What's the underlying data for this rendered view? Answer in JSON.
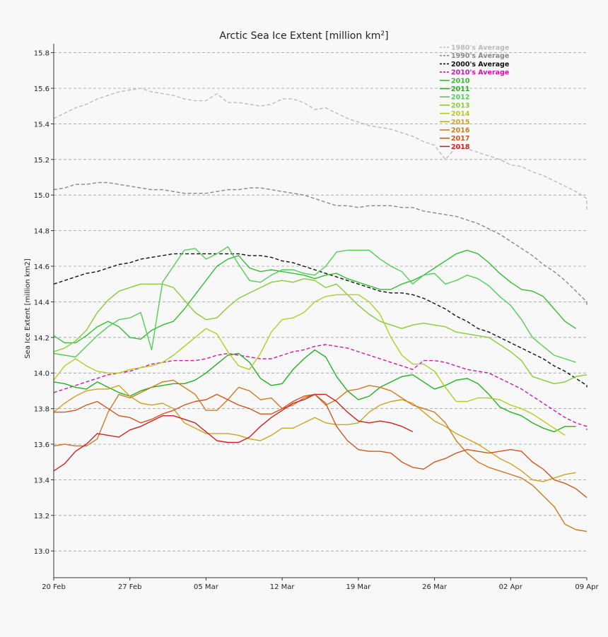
{
  "chart_data": {
    "type": "line",
    "title": "Arctic Sea Ice Extent [million km",
    "title_sup": "2",
    "title_end": "]",
    "ylabel": "Sea Ice Extent [million km2]",
    "xlabel": "",
    "ylim": [
      12.85,
      15.85
    ],
    "xlim": [
      0,
      49
    ],
    "grid": "horizontal-dashed",
    "legend_placement": "top-right",
    "y_ticks": [
      "13.0",
      "13.2",
      "13.4",
      "13.6",
      "13.8",
      "14.0",
      "14.2",
      "14.4",
      "14.6",
      "14.8",
      "15.0",
      "15.2",
      "15.4",
      "15.6",
      "15.8"
    ],
    "x_ticks": [
      {
        "label": "20 Feb",
        "day": 0
      },
      {
        "label": "27 Feb",
        "day": 7
      },
      {
        "label": "05 Mar",
        "day": 14
      },
      {
        "label": "12 Mar",
        "day": 21
      },
      {
        "label": "19 Mar",
        "day": 28
      },
      {
        "label": "26 Mar",
        "day": 35
      },
      {
        "label": "02 Apr",
        "day": 42
      },
      {
        "label": "09 Apr",
        "day": 49
      }
    ],
    "series": [
      {
        "name": "1980's Average",
        "color": "#bbbbbb",
        "dashed": true,
        "x0": 0,
        "values": [
          15.43,
          15.46,
          15.49,
          15.51,
          15.54,
          15.56,
          15.58,
          15.59,
          15.6,
          15.58,
          15.57,
          15.56,
          15.54,
          15.53,
          15.53,
          15.57,
          15.52,
          15.52,
          15.51,
          15.5,
          15.51,
          15.54,
          15.54,
          15.52,
          15.48,
          15.49,
          15.46,
          15.43,
          15.41,
          15.39,
          15.38,
          15.37,
          15.35,
          15.33,
          15.3,
          15.28,
          15.2,
          15.27,
          15.26,
          15.24,
          15.22,
          15.2,
          15.17,
          15.16,
          15.13,
          15.11,
          15.08,
          15.05,
          15.02,
          14.98,
          14.92,
          14.91
        ]
      },
      {
        "name": "1990's Average",
        "color": "#888888",
        "dashed": true,
        "x0": 0,
        "values": [
          15.03,
          15.04,
          15.06,
          15.06,
          15.07,
          15.07,
          15.06,
          15.05,
          15.04,
          15.03,
          15.03,
          15.02,
          15.01,
          15.01,
          15.01,
          15.02,
          15.03,
          15.03,
          15.04,
          15.04,
          15.03,
          15.02,
          15.01,
          15.0,
          14.98,
          14.96,
          14.94,
          14.94,
          14.93,
          14.94,
          14.94,
          14.94,
          14.93,
          14.93,
          14.91,
          14.9,
          14.89,
          14.88,
          14.86,
          14.84,
          14.81,
          14.78,
          14.74,
          14.7,
          14.66,
          14.61,
          14.57,
          14.52,
          14.46,
          14.4,
          14.38
        ]
      },
      {
        "name": "2000's Average",
        "color": "#111111",
        "dashed": true,
        "x0": 0,
        "values": [
          14.5,
          14.52,
          14.54,
          14.56,
          14.57,
          14.59,
          14.61,
          14.62,
          14.64,
          14.65,
          14.66,
          14.67,
          14.67,
          14.67,
          14.67,
          14.67,
          14.67,
          14.67,
          14.66,
          14.66,
          14.65,
          14.63,
          14.62,
          14.6,
          14.58,
          14.56,
          14.54,
          14.52,
          14.5,
          14.48,
          14.46,
          14.45,
          14.45,
          14.44,
          14.42,
          14.39,
          14.36,
          14.32,
          14.29,
          14.25,
          14.23,
          14.2,
          14.17,
          14.14,
          14.11,
          14.08,
          14.04,
          14.01,
          13.97,
          13.93,
          13.92
        ]
      },
      {
        "name": "2010's Average",
        "color": "#d015b0",
        "dashed": true,
        "x0": 0,
        "values": [
          13.89,
          13.91,
          13.93,
          13.95,
          13.97,
          13.99,
          14.0,
          14.01,
          14.03,
          14.05,
          14.06,
          14.07,
          14.07,
          14.07,
          14.08,
          14.1,
          14.11,
          14.1,
          14.09,
          14.08,
          14.08,
          14.1,
          14.12,
          14.13,
          14.15,
          14.16,
          14.15,
          14.14,
          14.12,
          14.1,
          14.08,
          14.06,
          14.04,
          14.02,
          14.07,
          14.07,
          14.06,
          14.04,
          14.02,
          14.01,
          14.0,
          13.97,
          13.94,
          13.91,
          13.87,
          13.83,
          13.79,
          13.75,
          13.72,
          13.7,
          13.68
        ]
      },
      {
        "name": "2010",
        "color": "#2fbf2f",
        "dashed": false,
        "x0": 0,
        "values": [
          14.21,
          14.17,
          14.17,
          14.21,
          14.26,
          14.29,
          14.26,
          14.2,
          14.19,
          14.24,
          14.27,
          14.29,
          14.36,
          14.44,
          14.52,
          14.6,
          14.64,
          14.66,
          14.59,
          14.57,
          14.58,
          14.57,
          14.56,
          14.55,
          14.53,
          14.55,
          14.56,
          14.53,
          14.51,
          14.49,
          14.47,
          14.47,
          14.5,
          14.52,
          14.55,
          14.59,
          14.63,
          14.67,
          14.69,
          14.67,
          14.62,
          14.56,
          14.51,
          14.47,
          14.46,
          14.43,
          14.36,
          14.29,
          14.25
        ]
      },
      {
        "name": "2011",
        "color": "#22b022",
        "dashed": false,
        "x0": 0,
        "values": [
          13.95,
          13.94,
          13.92,
          13.91,
          13.95,
          13.92,
          13.89,
          13.87,
          13.9,
          13.92,
          13.93,
          13.94,
          13.94,
          13.96,
          14.0,
          14.05,
          14.1,
          14.11,
          14.06,
          13.97,
          13.93,
          13.94,
          14.02,
          14.08,
          14.13,
          14.09,
          13.98,
          13.9,
          13.85,
          13.87,
          13.92,
          13.95,
          13.98,
          13.99,
          13.95,
          13.91,
          13.93,
          13.96,
          13.97,
          13.94,
          13.88,
          13.81,
          13.78,
          13.76,
          13.72,
          13.69,
          13.67,
          13.7,
          13.7
        ]
      },
      {
        "name": "2012",
        "color": "#55cc55",
        "dashed": false,
        "x0": 0,
        "values": [
          14.11,
          14.1,
          14.09,
          14.15,
          14.21,
          14.26,
          14.3,
          14.31,
          14.34,
          14.13,
          14.51,
          14.6,
          14.69,
          14.7,
          14.64,
          14.67,
          14.71,
          14.61,
          14.52,
          14.51,
          14.55,
          14.58,
          14.58,
          14.56,
          14.55,
          14.6,
          14.68,
          14.69,
          14.69,
          14.69,
          14.64,
          14.6,
          14.57,
          14.5,
          14.55,
          14.56,
          14.5,
          14.52,
          14.55,
          14.53,
          14.49,
          14.43,
          14.38,
          14.3,
          14.2,
          14.15,
          14.1,
          14.08,
          14.06
        ]
      },
      {
        "name": "2013",
        "color": "#88cc33",
        "dashed": false,
        "x0": 0,
        "values": [
          14.12,
          14.14,
          14.18,
          14.24,
          14.34,
          14.41,
          14.46,
          14.48,
          14.5,
          14.5,
          14.5,
          14.48,
          14.41,
          14.34,
          14.3,
          14.31,
          14.37,
          14.42,
          14.45,
          14.48,
          14.51,
          14.52,
          14.51,
          14.53,
          14.52,
          14.48,
          14.5,
          14.44,
          14.38,
          14.33,
          14.29,
          14.27,
          14.25,
          14.27,
          14.28,
          14.27,
          14.26,
          14.23,
          14.22,
          14.21,
          14.2,
          14.16,
          14.12,
          14.07,
          13.98,
          13.96,
          13.94,
          13.95,
          13.98,
          13.99
        ]
      },
      {
        "name": "2014",
        "color": "#b5cc22",
        "dashed": false,
        "x0": 0,
        "values": [
          13.96,
          14.04,
          14.08,
          14.04,
          14.01,
          14.0,
          14.0,
          14.02,
          14.03,
          14.04,
          14.06,
          14.1,
          14.15,
          14.2,
          14.25,
          14.22,
          14.12,
          14.04,
          14.02,
          14.11,
          14.23,
          14.3,
          14.31,
          14.34,
          14.4,
          14.43,
          14.44,
          14.44,
          14.44,
          14.4,
          14.33,
          14.2,
          14.1,
          14.05,
          14.05,
          14.01,
          13.92,
          13.84,
          13.84,
          13.86,
          13.86,
          13.85,
          13.82,
          13.8,
          13.77,
          13.73,
          13.69,
          13.65
        ]
      },
      {
        "name": "2015",
        "color": "#cca322",
        "dashed": false,
        "x0": 0,
        "values": [
          13.78,
          13.83,
          13.87,
          13.9,
          13.91,
          13.91,
          13.93,
          13.87,
          13.83,
          13.82,
          13.83,
          13.8,
          13.72,
          13.69,
          13.66,
          13.66,
          13.66,
          13.65,
          13.63,
          13.62,
          13.65,
          13.69,
          13.69,
          13.72,
          13.75,
          13.72,
          13.71,
          13.71,
          13.72,
          13.78,
          13.82,
          13.84,
          13.85,
          13.83,
          13.78,
          13.73,
          13.7,
          13.66,
          13.63,
          13.6,
          13.56,
          13.52,
          13.49,
          13.45,
          13.4,
          13.39,
          13.41,
          13.43,
          13.44
        ]
      },
      {
        "name": "2016",
        "color": "#d07a22",
        "dashed": false,
        "x0": 0,
        "values": [
          13.59,
          13.6,
          13.59,
          13.59,
          13.63,
          13.78,
          13.88,
          13.86,
          13.89,
          13.92,
          13.95,
          13.96,
          13.92,
          13.88,
          13.79,
          13.79,
          13.85,
          13.92,
          13.9,
          13.85,
          13.86,
          13.8,
          13.82,
          13.86,
          13.88,
          13.82,
          13.85,
          13.9,
          13.91,
          13.93,
          13.92,
          13.9,
          13.86,
          13.82,
          13.8,
          13.78,
          13.72,
          13.62,
          13.55,
          13.5,
          13.47,
          13.45,
          13.43,
          13.41,
          13.37,
          13.31,
          13.25,
          13.15,
          13.12,
          13.11
        ]
      },
      {
        "name": "2017",
        "color": "#d05522",
        "dashed": false,
        "x0": 0,
        "values": [
          13.78,
          13.78,
          13.79,
          13.82,
          13.84,
          13.8,
          13.76,
          13.75,
          13.72,
          13.74,
          13.77,
          13.79,
          13.82,
          13.84,
          13.85,
          13.88,
          13.85,
          13.82,
          13.8,
          13.77,
          13.77,
          13.8,
          13.84,
          13.87,
          13.88,
          13.83,
          13.7,
          13.62,
          13.57,
          13.56,
          13.56,
          13.55,
          13.5,
          13.47,
          13.46,
          13.5,
          13.52,
          13.55,
          13.57,
          13.56,
          13.55,
          13.56,
          13.57,
          13.56,
          13.5,
          13.46,
          13.4,
          13.38,
          13.35,
          13.3
        ]
      },
      {
        "name": "2018",
        "color": "#cc2222",
        "dashed": false,
        "x0": 0,
        "values": [
          13.45,
          13.49,
          13.56,
          13.6,
          13.66,
          13.65,
          13.64,
          13.68,
          13.7,
          13.73,
          13.76,
          13.76,
          13.74,
          13.72,
          13.67,
          13.62,
          13.61,
          13.61,
          13.64,
          13.7,
          13.75,
          13.79,
          13.83,
          13.85,
          13.88,
          13.88,
          13.84,
          13.78,
          13.73,
          13.72,
          13.73,
          13.72,
          13.7,
          13.67
        ]
      }
    ]
  }
}
